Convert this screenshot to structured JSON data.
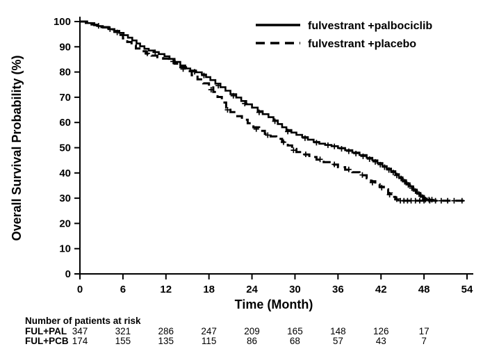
{
  "chart_data": {
    "type": "line",
    "subtype": "kaplan-meier-step",
    "title": "",
    "xlabel": "Time (Month)",
    "ylabel": "Overall Survival Probability (%)",
    "xlim": [
      0,
      54
    ],
    "ylim": [
      0,
      100
    ],
    "xticks": [
      0,
      6,
      12,
      18,
      24,
      30,
      36,
      42,
      48,
      54
    ],
    "yticks": [
      0,
      10,
      20,
      30,
      40,
      50,
      60,
      70,
      80,
      90,
      100
    ],
    "grid": false,
    "legend_position": "top-right-inside",
    "series": [
      {
        "id": "palbociclib",
        "name": "fulvestrant +palbociclib",
        "style": "solid",
        "points": [
          [
            0,
            100
          ],
          [
            0.8,
            99.4
          ],
          [
            1.6,
            98.8
          ],
          [
            2.4,
            98.2
          ],
          [
            3.2,
            97.6
          ],
          [
            4,
            97
          ],
          [
            4.8,
            96.3
          ],
          [
            5.5,
            95.5
          ],
          [
            6.1,
            94.6
          ],
          [
            6.7,
            93.6
          ],
          [
            7.3,
            92.5
          ],
          [
            7.9,
            91.3
          ],
          [
            8.4,
            90.2
          ],
          [
            9,
            89.2
          ],
          [
            9.6,
            88.5
          ],
          [
            10.3,
            87.9
          ],
          [
            11,
            87.1
          ],
          [
            11.8,
            86.2
          ],
          [
            12.5,
            85.2
          ],
          [
            13.2,
            84
          ],
          [
            14,
            82.6
          ],
          [
            14.7,
            81.4
          ],
          [
            15.4,
            80.6
          ],
          [
            16.2,
            79.9
          ],
          [
            17,
            79
          ],
          [
            17.6,
            78
          ],
          [
            18.2,
            76.8
          ],
          [
            18.9,
            75.4
          ],
          [
            19.6,
            74
          ],
          [
            20.3,
            72.6
          ],
          [
            21,
            71.2
          ],
          [
            21.8,
            69.9
          ],
          [
            22.5,
            68.5
          ],
          [
            23.2,
            67.2
          ],
          [
            24,
            65.9
          ],
          [
            24.8,
            64.5
          ],
          [
            25.5,
            63.3
          ],
          [
            26.3,
            62.1
          ],
          [
            27,
            60.8
          ],
          [
            27.6,
            59.4
          ],
          [
            28.2,
            58.1
          ],
          [
            28.8,
            57
          ],
          [
            29.5,
            56
          ],
          [
            30.2,
            55.1
          ],
          [
            31,
            54.2
          ],
          [
            31.8,
            53.2
          ],
          [
            32.6,
            52.3
          ],
          [
            33.4,
            51.6
          ],
          [
            34.2,
            51.1
          ],
          [
            35.1,
            50.6
          ],
          [
            36,
            49.9
          ],
          [
            37,
            49
          ],
          [
            38,
            48.1
          ],
          [
            39,
            47.1
          ],
          [
            40,
            46
          ],
          [
            40.8,
            45
          ],
          [
            41.5,
            43.9
          ],
          [
            42.2,
            42.7
          ],
          [
            42.8,
            41.7
          ],
          [
            43.4,
            40.7
          ],
          [
            44,
            39.5
          ],
          [
            44.5,
            38.3
          ],
          [
            45,
            37.1
          ],
          [
            45.5,
            35.9
          ],
          [
            46,
            34.7
          ],
          [
            46.5,
            33.4
          ],
          [
            47,
            32.1
          ],
          [
            47.5,
            30.9
          ],
          [
            48,
            29.9
          ],
          [
            48.4,
            29.4
          ],
          [
            49.3,
            29.4
          ]
        ],
        "censors": [
          [
            2.6,
            98.3
          ],
          [
            5.2,
            95.7
          ],
          [
            10.5,
            87.8
          ],
          [
            13,
            84.2
          ],
          [
            16,
            80.1
          ],
          [
            17.3,
            78.6
          ],
          [
            19.3,
            74.6
          ],
          [
            21.4,
            70.6
          ],
          [
            23,
            67.5
          ],
          [
            25,
            64
          ],
          [
            27.2,
            60.5
          ],
          [
            29,
            56.4
          ],
          [
            31.4,
            53.8
          ],
          [
            33,
            52
          ],
          [
            34.6,
            51
          ],
          [
            35.5,
            50.5
          ],
          [
            36.5,
            49.6
          ],
          [
            37.5,
            48.6
          ],
          [
            38.5,
            47.7
          ],
          [
            39.5,
            46.6
          ],
          [
            40.4,
            45.5
          ],
          [
            41.2,
            44.4
          ],
          [
            41.9,
            43.3
          ],
          [
            42.5,
            42.3
          ],
          [
            43.1,
            41.2
          ],
          [
            43.7,
            40.2
          ],
          [
            44.2,
            39
          ],
          [
            44.8,
            37.8
          ],
          [
            45.3,
            36.5
          ],
          [
            45.8,
            35.3
          ],
          [
            46.3,
            34
          ],
          [
            46.8,
            32.8
          ],
          [
            47.3,
            31.6
          ],
          [
            47.8,
            30.4
          ],
          [
            48.2,
            29.4
          ],
          [
            48.7,
            29.4
          ],
          [
            49.1,
            29.4
          ]
        ]
      },
      {
        "id": "placebo",
        "name": "fulvestrant +placebo",
        "style": "dashed",
        "points": [
          [
            0,
            100
          ],
          [
            1,
            99.3
          ],
          [
            2,
            98.6
          ],
          [
            3,
            97.8
          ],
          [
            4,
            96.9
          ],
          [
            4.8,
            95.9
          ],
          [
            5.4,
            94.7
          ],
          [
            6,
            93.3
          ],
          [
            6.6,
            91.9
          ],
          [
            7.2,
            90.5
          ],
          [
            7.8,
            89.3
          ],
          [
            8.5,
            88.2
          ],
          [
            9.2,
            87.3
          ],
          [
            10,
            86.5
          ],
          [
            10.8,
            85.9
          ],
          [
            11.6,
            85.3
          ],
          [
            12.4,
            84.5
          ],
          [
            13.2,
            83.3
          ],
          [
            14,
            81.9
          ],
          [
            14.8,
            80.3
          ],
          [
            15.6,
            78.7
          ],
          [
            16.4,
            77.1
          ],
          [
            17.2,
            75.5
          ],
          [
            18,
            73.9
          ],
          [
            18.6,
            72.1
          ],
          [
            19.2,
            70.1
          ],
          [
            19.8,
            67.9
          ],
          [
            20.4,
            65.9
          ],
          [
            21,
            64.1
          ],
          [
            21.8,
            62.5
          ],
          [
            22.6,
            61.1
          ],
          [
            23.4,
            59.7
          ],
          [
            24.2,
            58.1
          ],
          [
            25,
            56.7
          ],
          [
            25.8,
            55.5
          ],
          [
            26.6,
            54.5
          ],
          [
            27.4,
            53.5
          ],
          [
            28.2,
            52.3
          ],
          [
            29,
            50.9
          ],
          [
            29.6,
            49.5
          ],
          [
            30.2,
            48.3
          ],
          [
            31,
            47.3
          ],
          [
            32,
            46.3
          ],
          [
            33,
            45.3
          ],
          [
            34,
            44.3
          ],
          [
            35,
            43.3
          ],
          [
            36,
            42.3
          ],
          [
            37,
            41.3
          ],
          [
            38,
            40.3
          ],
          [
            39,
            39.1
          ],
          [
            40,
            37.9
          ],
          [
            40.6,
            36.7
          ],
          [
            41.2,
            35.5
          ],
          [
            41.8,
            34.5
          ],
          [
            42.4,
            33.5
          ],
          [
            43,
            31.9
          ],
          [
            43.5,
            30.5
          ],
          [
            44,
            29.5
          ],
          [
            44.5,
            29
          ],
          [
            54,
            29
          ]
        ],
        "censors": [
          [
            4.2,
            97
          ],
          [
            9.4,
            87.4
          ],
          [
            14.4,
            81.2
          ],
          [
            18.3,
            73
          ],
          [
            20.6,
            65
          ],
          [
            24.6,
            57.4
          ],
          [
            26.2,
            55
          ],
          [
            28.4,
            52.2
          ],
          [
            29.8,
            49
          ],
          [
            31.5,
            47.4
          ],
          [
            33.5,
            45.4
          ],
          [
            35.5,
            43.4
          ],
          [
            37.5,
            41.4
          ],
          [
            39.4,
            39.2
          ],
          [
            40.8,
            36.2
          ],
          [
            42.1,
            34.2
          ],
          [
            43.2,
            31.4
          ],
          [
            44.2,
            29.6
          ],
          [
            44.7,
            29
          ],
          [
            45.2,
            29
          ],
          [
            45.7,
            29
          ],
          [
            46.2,
            29
          ],
          [
            46.8,
            29
          ],
          [
            47.4,
            29
          ],
          [
            48,
            29
          ],
          [
            48.8,
            29
          ],
          [
            49.6,
            29
          ],
          [
            50.4,
            29
          ],
          [
            51.3,
            29
          ],
          [
            52.2,
            29
          ],
          [
            53.3,
            29
          ]
        ]
      }
    ],
    "risk_table": {
      "title": "Number of patients at risk",
      "times": [
        0,
        6,
        12,
        18,
        24,
        30,
        36,
        42,
        48
      ],
      "rows": [
        {
          "label": "FUL+PAL",
          "counts": [
            347,
            321,
            286,
            247,
            209,
            165,
            148,
            126,
            17
          ]
        },
        {
          "label": "FUL+PCB",
          "counts": [
            174,
            155,
            135,
            115,
            86,
            68,
            57,
            43,
            7
          ]
        }
      ]
    },
    "colors": {
      "line": "#000000",
      "background": "#ffffff"
    }
  }
}
